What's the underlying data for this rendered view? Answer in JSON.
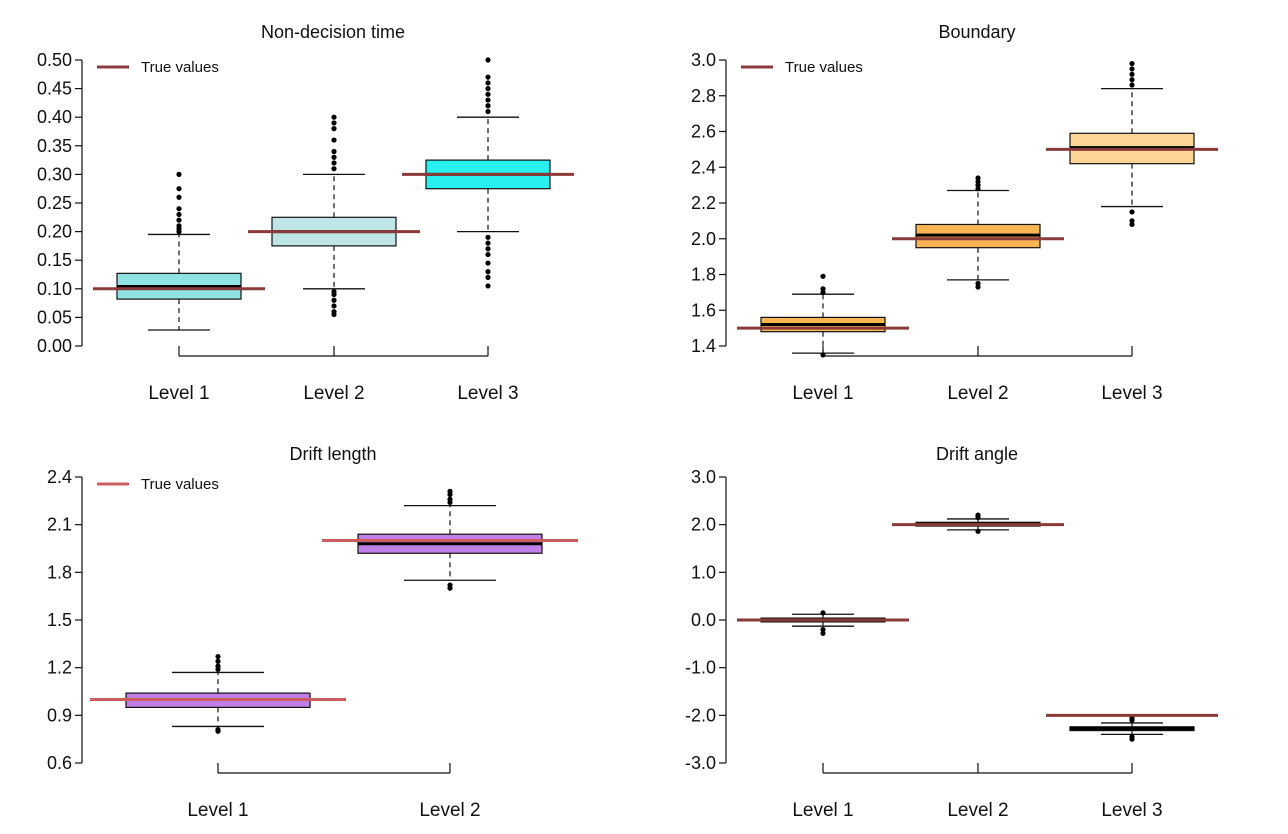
{
  "figure": {
    "legend_label": "True values",
    "true_value_color": "#8b3a3a",
    "true_value_color_light": "#cd5c5c"
  },
  "chart_data": [
    {
      "type": "box",
      "title": "Non-decision time",
      "xlabel": "",
      "ylabel": "",
      "ylim": [
        0.0,
        0.5
      ],
      "yticks": [
        "0.00",
        "0.05",
        "0.10",
        "0.15",
        "0.20",
        "0.25",
        "0.30",
        "0.35",
        "0.40",
        "0.45",
        "0.50"
      ],
      "categories": [
        "Level 1",
        "Level 2",
        "Level 3"
      ],
      "legend": {
        "label": "True values",
        "position": "top-left"
      },
      "boxes": [
        {
          "category": "Level 1",
          "fill": "#8fe3e3",
          "whisker_low": 0.028,
          "q1": 0.082,
          "median": 0.104,
          "q3": 0.127,
          "whisker_high": 0.195,
          "outliers_low": [],
          "outliers_high": [
            0.2,
            0.205,
            0.21,
            0.22,
            0.23,
            0.24,
            0.26,
            0.275,
            0.3
          ],
          "true_value": 0.1
        },
        {
          "category": "Level 2",
          "fill": "#bfe6e6",
          "whisker_low": 0.1,
          "q1": 0.175,
          "median": 0.2,
          "q3": 0.225,
          "whisker_high": 0.3,
          "outliers_low": [
            0.055,
            0.06,
            0.07,
            0.08,
            0.09,
            0.095
          ],
          "outliers_high": [
            0.31,
            0.32,
            0.33,
            0.34,
            0.36,
            0.38,
            0.39,
            0.4
          ],
          "true_value": 0.2
        },
        {
          "category": "Level 3",
          "fill": "#29f0f0",
          "whisker_low": 0.2,
          "q1": 0.275,
          "median": 0.3,
          "q3": 0.325,
          "whisker_high": 0.4,
          "outliers_low": [
            0.105,
            0.12,
            0.13,
            0.145,
            0.16,
            0.17,
            0.18,
            0.19
          ],
          "outliers_high": [
            0.41,
            0.42,
            0.43,
            0.44,
            0.45,
            0.46,
            0.47,
            0.5
          ],
          "true_value": 0.3
        }
      ]
    },
    {
      "type": "box",
      "title": "Boundary",
      "xlabel": "",
      "ylabel": "",
      "ylim": [
        1.4,
        3.0
      ],
      "yticks": [
        "1.4",
        "1.6",
        "1.8",
        "2.0",
        "2.2",
        "2.4",
        "2.6",
        "2.8",
        "3.0"
      ],
      "categories": [
        "Level 1",
        "Level 2",
        "Level 3"
      ],
      "legend": {
        "label": "True values",
        "position": "top-left"
      },
      "boxes": [
        {
          "category": "Level 1",
          "fill": "#f9b454",
          "whisker_low": 1.36,
          "q1": 1.48,
          "median": 1.52,
          "q3": 1.56,
          "whisker_high": 1.69,
          "outliers_low": [
            1.35
          ],
          "outliers_high": [
            1.7,
            1.72,
            1.79
          ],
          "true_value": 1.5
        },
        {
          "category": "Level 2",
          "fill": "#f9b454",
          "whisker_low": 1.77,
          "q1": 1.95,
          "median": 2.02,
          "q3": 2.08,
          "whisker_high": 2.27,
          "outliers_low": [
            1.73,
            1.75
          ],
          "outliers_high": [
            2.28,
            2.3,
            2.32,
            2.34
          ],
          "true_value": 2.0
        },
        {
          "category": "Level 3",
          "fill": "#fdd596",
          "whisker_low": 2.18,
          "q1": 2.42,
          "median": 2.51,
          "q3": 2.59,
          "whisker_high": 2.84,
          "outliers_low": [
            2.08,
            2.1,
            2.15
          ],
          "outliers_high": [
            2.86,
            2.89,
            2.92,
            2.95,
            2.98
          ],
          "true_value": 2.5
        }
      ]
    },
    {
      "type": "box",
      "title": "Drift length",
      "xlabel": "",
      "ylabel": "",
      "ylim": [
        0.6,
        2.4
      ],
      "yticks": [
        "0.6",
        "0.9",
        "1.2",
        "1.5",
        "1.8",
        "2.1",
        "2.4"
      ],
      "categories": [
        "Level 1",
        "Level 2"
      ],
      "legend": {
        "label": "True values",
        "position": "top-left"
      },
      "boxes": [
        {
          "category": "Level 1",
          "fill": "#c080e8",
          "whisker_low": 0.83,
          "q1": 0.95,
          "median": 1.0,
          "q3": 1.04,
          "whisker_high": 1.17,
          "outliers_low": [
            0.8,
            0.81
          ],
          "outliers_high": [
            1.19,
            1.21,
            1.24,
            1.27
          ],
          "true_value": 1.0
        },
        {
          "category": "Level 2",
          "fill": "#c080e8",
          "whisker_low": 1.75,
          "q1": 1.92,
          "median": 1.98,
          "q3": 2.04,
          "whisker_high": 2.22,
          "outliers_low": [
            1.7,
            1.72
          ],
          "outliers_high": [
            2.24,
            2.26,
            2.29,
            2.31
          ],
          "true_value": 2.0
        }
      ]
    },
    {
      "type": "box",
      "title": "Drift angle",
      "xlabel": "",
      "ylabel": "",
      "ylim": [
        -3.0,
        3.0
      ],
      "yticks": [
        "-3.0",
        "-2.0",
        "-1.0",
        "0.0",
        "1.0",
        "2.0",
        "3.0"
      ],
      "categories": [
        "Level 1",
        "Level 2",
        "Level 3"
      ],
      "legend": null,
      "boxes": [
        {
          "category": "Level 1",
          "fill": "#777777",
          "whisker_low": -0.13,
          "q1": -0.04,
          "median": 0.0,
          "q3": 0.04,
          "whisker_high": 0.12,
          "outliers_low": [
            -0.2,
            -0.28
          ],
          "outliers_high": [
            0.15
          ],
          "true_value": 0.0
        },
        {
          "category": "Level 2",
          "fill": "#777777",
          "whisker_low": 1.89,
          "q1": 1.97,
          "median": 2.01,
          "q3": 2.05,
          "whisker_high": 2.12,
          "outliers_low": [
            1.86
          ],
          "outliers_high": [
            2.15,
            2.2
          ],
          "true_value": 2.0
        },
        {
          "category": "Level 3",
          "fill": "#222222",
          "whisker_low": -2.4,
          "q1": -2.32,
          "median": -2.28,
          "q3": -2.24,
          "whisker_high": -2.16,
          "outliers_low": [
            -2.45,
            -2.5
          ],
          "outliers_high": [
            -2.1,
            -2.05
          ],
          "true_value": -2.0
        }
      ]
    }
  ]
}
